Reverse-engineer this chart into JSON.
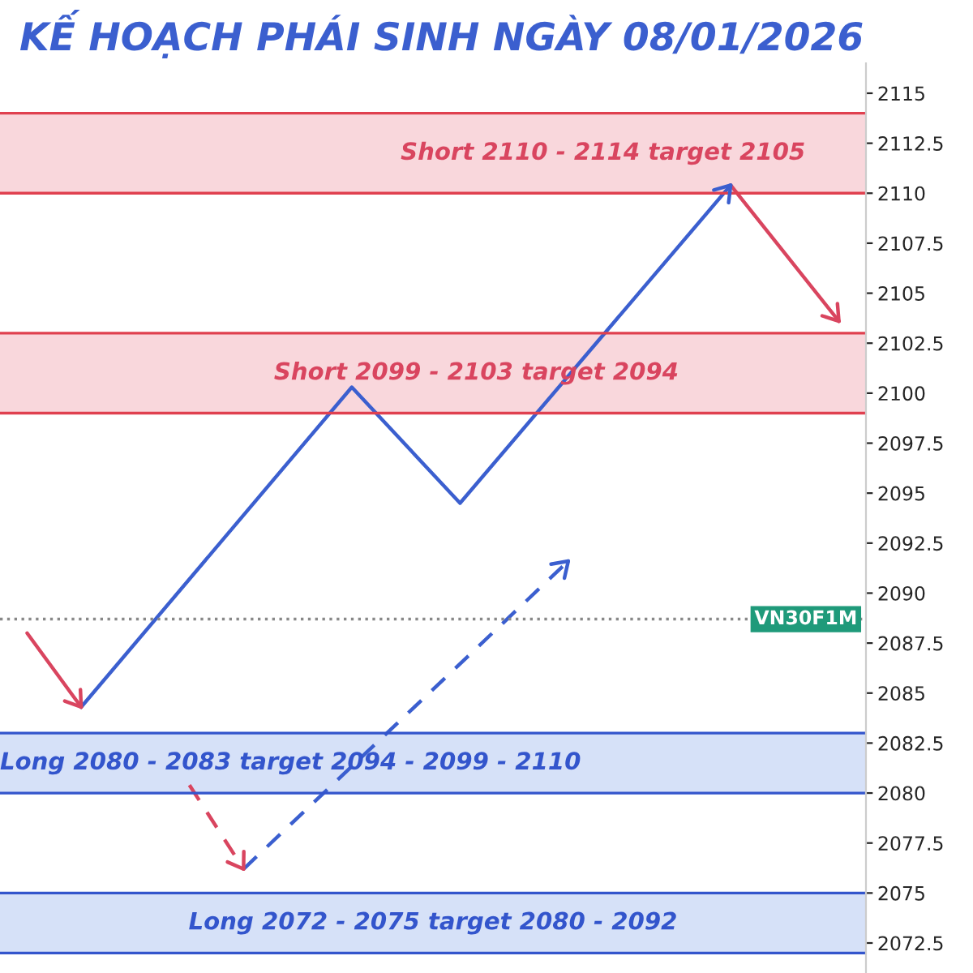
{
  "chart_data": {
    "type": "line",
    "title": "KẾ HOẠCH PHÁI SINH NGÀY 08/01/2026",
    "categories": [
      null,
      null,
      null,
      null,
      null,
      null,
      null,
      null,
      null,
      null,
      null,
      null,
      null,
      null,
      null,
      null
    ],
    "series": [
      {
        "color": "#d9455f",
        "line_style": "solid",
        "values": [
          2088.0,
          2084.3,
          null,
          null,
          null,
          null,
          null,
          null,
          null,
          null,
          null,
          null,
          null,
          null,
          null,
          null
        ]
      },
      {
        "color": "#3b5fcf",
        "line_style": "solid",
        "values": [
          null,
          2084.3,
          null,
          null,
          null,
          null,
          2100.3,
          null,
          2094.5,
          null,
          null,
          null,
          null,
          2110.4,
          null,
          null
        ]
      },
      {
        "color": "#d9455f",
        "line_style": "solid",
        "values": [
          null,
          null,
          null,
          null,
          null,
          null,
          null,
          null,
          null,
          null,
          null,
          null,
          null,
          2110.4,
          null,
          2103.6
        ]
      },
      {
        "color": "#d9455f",
        "line_style": "dashed",
        "values": [
          null,
          null,
          null,
          2080.4,
          2076.2,
          null,
          null,
          null,
          null,
          null,
          null,
          null,
          null,
          null,
          null,
          null
        ]
      },
      {
        "color": "#3b5fcf",
        "line_style": "dashed",
        "values": [
          null,
          null,
          null,
          null,
          2076.2,
          null,
          null,
          null,
          null,
          null,
          2091.6,
          null,
          null,
          null,
          null,
          null
        ]
      }
    ],
    "bands": [
      {
        "axis": "y",
        "from": 2110,
        "to": 2114,
        "label": "Short 2110 - 2114 target 2105",
        "color": "#f9d7dc"
      },
      {
        "axis": "y",
        "from": 2099,
        "to": 2103,
        "label": "Short 2099 - 2103 target 2094",
        "color": "#f9d7dc"
      },
      {
        "axis": "y",
        "from": 2080,
        "to": 2083,
        "label": "Long 2080 - 2083 target 2094 - 2099 - 2110",
        "color": "#d6e1f8"
      },
      {
        "axis": "y",
        "from": 2072,
        "to": 2075,
        "label": "Long 2072 - 2075 target 2080 - 2092",
        "color": "#d6e1f8"
      }
    ],
    "ref_lines": [
      {
        "axis": "y",
        "value": 2088.7,
        "label": "VN30F1M",
        "color": "#888888",
        "line_style": "dotted"
      },
      {
        "axis": "y",
        "value": 2114,
        "color": "#e0404f",
        "line_style": "solid"
      },
      {
        "axis": "y",
        "value": 2110,
        "color": "#e0404f",
        "line_style": "solid"
      },
      {
        "axis": "y",
        "value": 2103,
        "color": "#e0404f",
        "line_style": "solid"
      },
      {
        "axis": "y",
        "value": 2099,
        "color": "#e0404f",
        "line_style": "solid"
      },
      {
        "axis": "y",
        "value": 2083,
        "color": "#3355cc",
        "line_style": "solid"
      },
      {
        "axis": "y",
        "value": 2080,
        "color": "#3355cc",
        "line_style": "solid"
      },
      {
        "axis": "y",
        "value": 2075,
        "color": "#3355cc",
        "line_style": "solid"
      },
      {
        "axis": "y",
        "value": 2072,
        "color": "#3355cc",
        "line_style": "solid"
      }
    ],
    "ylim": [
      2071,
      2116.5
    ],
    "yticks": [
      2072.5,
      2075,
      2077.5,
      2080,
      2082.5,
      2085,
      2087.5,
      2090,
      2092.5,
      2095,
      2097.5,
      2100,
      2102.5,
      2105,
      2107.5,
      2110,
      2112.5,
      2115
    ],
    "grid": false
  }
}
